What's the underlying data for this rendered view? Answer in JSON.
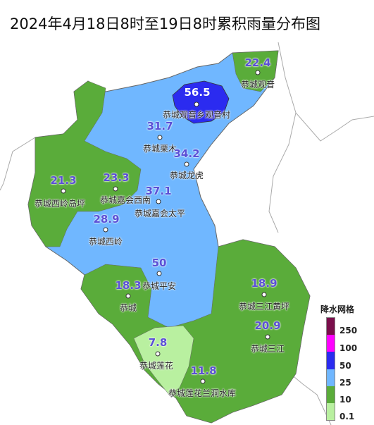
{
  "title": "2024年4月18日8时至19日8时累积雨量分布图",
  "legend": {
    "title": "降水网格",
    "labels": [
      "250",
      "100",
      "50",
      "25",
      "10",
      "0.1"
    ],
    "colors": [
      "#7a0e4b",
      "#ff00ff",
      "#2b2bf0",
      "#70b7ff",
      "#5aac3a",
      "#b9f0a0"
    ]
  },
  "stations": [
    {
      "value": "22.4",
      "name": "恭城观音"
    },
    {
      "value": "56.5",
      "name": "恭城观音乡观音村"
    },
    {
      "value": "31.7",
      "name": "恭城栗木"
    },
    {
      "value": "34.2",
      "name": "恭城龙虎"
    },
    {
      "value": "21.3",
      "name": "恭城西岭岛坪"
    },
    {
      "value": "23.3",
      "name": "恭城嘉会西南"
    },
    {
      "value": "37.1",
      "name": "恭城嘉会太平"
    },
    {
      "value": "28.9",
      "name": "恭城西岭"
    },
    {
      "value": "50",
      "name": "恭城平安"
    },
    {
      "value": "18.3",
      "name": "恭城"
    },
    {
      "value": "18.9",
      "name": "恭城三江黄坪"
    },
    {
      "value": "20.9",
      "name": "恭城三江"
    },
    {
      "value": "7.8",
      "name": "恭城莲花"
    },
    {
      "value": "11.8",
      "name": "恭城莲花兰洞水库"
    }
  ]
}
